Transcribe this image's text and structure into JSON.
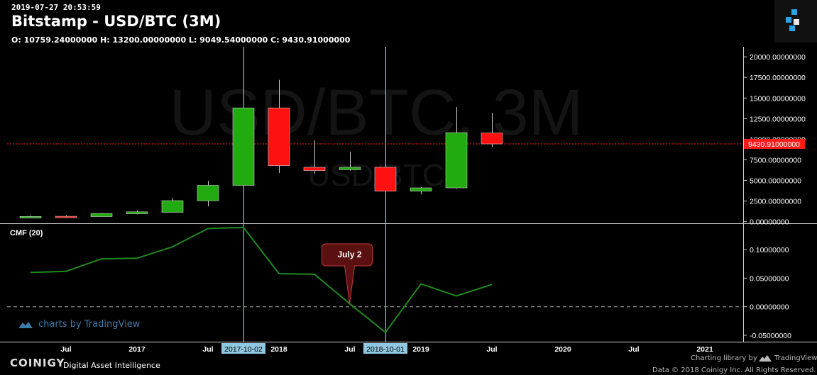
{
  "header": {
    "timestamp": "2019-07-27 20:53:59",
    "title": "Bitstamp - USD/BTC (3M)",
    "ohlc": "O: 10759.24000000 H: 13200.00000000 L: 9049.54000000 C: 9430.91000000"
  },
  "watermark": {
    "big": "USD/BTC, 3M",
    "small": "USD/BTC"
  },
  "colors": {
    "up": "#22aa11",
    "down": "#ff1111",
    "cmf_line": "#1e8a1e",
    "price_line": "#ff2222",
    "crosshair": "#b8d4e6",
    "date_label_bg": "#8fc8e0",
    "callout_bg": "#5a1010"
  },
  "chart_data": [
    {
      "type": "candlestick",
      "title": "Bitstamp - USD/BTC (3M)",
      "ylim": [
        -200,
        20700
      ],
      "yticks": [
        "20000.00000000",
        "17500.00000000",
        "15000.00000000",
        "12500.00000000",
        "10000.00000000",
        "7500.00000000",
        "5000.00000000",
        "2500.00000000",
        "0.00000000"
      ],
      "ytick_values": [
        20000,
        17500,
        15000,
        12500,
        10000,
        7500,
        5000,
        2500,
        0
      ],
      "last_price": 9430.91,
      "last_price_label": "9430.91000000",
      "candles": [
        {
          "open": 430,
          "high": 760,
          "low": 400,
          "close": 630
        },
        {
          "open": 650,
          "high": 780,
          "low": 520,
          "close": 600
        },
        {
          "open": 610,
          "high": 1060,
          "low": 600,
          "close": 1000
        },
        {
          "open": 960,
          "high": 1330,
          "low": 900,
          "close": 1190
        },
        {
          "open": 1130,
          "high": 2900,
          "low": 1120,
          "close": 2550
        },
        {
          "open": 2530,
          "high": 4950,
          "low": 1850,
          "close": 4400
        },
        {
          "open": 4400,
          "high": 20600,
          "low": 4200,
          "close": 13800
        },
        {
          "open": 13800,
          "high": 17200,
          "low": 5900,
          "close": 6800
        },
        {
          "open": 6600,
          "high": 9900,
          "low": 5800,
          "close": 6200
        },
        {
          "open": 6300,
          "high": 8500,
          "low": 6200,
          "close": 6600
        },
        {
          "open": 6600,
          "high": 6700,
          "low": 3200,
          "close": 3700
        },
        {
          "open": 3700,
          "high": 4200,
          "low": 3300,
          "close": 4100
        },
        {
          "open": 4100,
          "high": 13900,
          "low": 4000,
          "close": 10800
        },
        {
          "open": 10759.24,
          "high": 13200,
          "low": 9049.54,
          "close": 9430.91
        }
      ]
    },
    {
      "type": "line",
      "title": "CMF (20)",
      "ylim": [
        -0.06,
        0.14
      ],
      "yticks": [
        "0.10000000",
        "0.05000000",
        "0.00000000",
        "-0.05000000"
      ],
      "ytick_values": [
        0.1,
        0.05,
        0.0,
        -0.05
      ],
      "values": [
        0.06,
        0.062,
        0.084,
        0.085,
        0.105,
        0.137,
        0.139,
        0.058,
        0.057,
        0.005,
        -0.045,
        0.04,
        0.019,
        0.039
      ],
      "zero_line": 0.0,
      "annotation": "July 2"
    }
  ],
  "xaxis": {
    "labels": [
      {
        "text": "Jul",
        "slot": 1
      },
      {
        "text": "2017",
        "slot": 3
      },
      {
        "text": "Jul",
        "slot": 5
      },
      {
        "text": "2018",
        "slot": 7
      },
      {
        "text": "Jul",
        "slot": 9
      },
      {
        "text": "2019",
        "slot": 11
      },
      {
        "text": "Jul",
        "slot": 13
      },
      {
        "text": "2020",
        "slot": 15
      },
      {
        "text": "Jul",
        "slot": 17
      },
      {
        "text": "2021",
        "slot": 19
      }
    ],
    "crosshair_labels": [
      {
        "text": "2017-10-02",
        "slot": 6
      },
      {
        "text": "2018-10-01",
        "slot": 10
      }
    ]
  },
  "footer": {
    "brand": "COINIGY",
    "tagline": "Digital Asset Intelligence",
    "charting": "Charting library by",
    "tv": "TradingView",
    "copyright": "Data © 2018 Coinigy Inc. All Rights Reserved.",
    "tv_watermark": "charts by TradingView"
  }
}
